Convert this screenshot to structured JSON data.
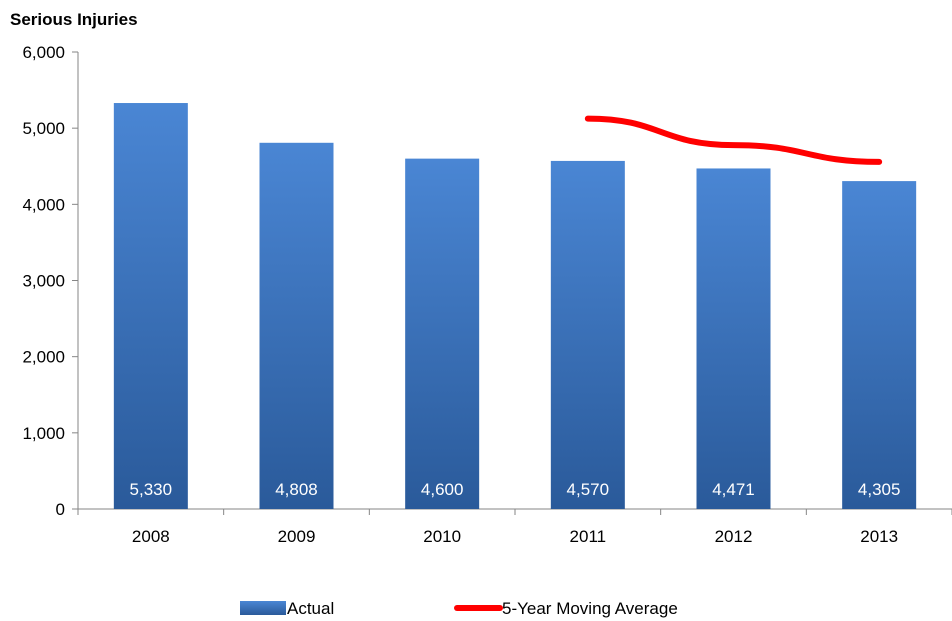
{
  "chart_data": {
    "type": "bar",
    "title": "Serious Injuries",
    "categories": [
      "2008",
      "2009",
      "2010",
      "2011",
      "2012",
      "2013"
    ],
    "series": [
      {
        "name": "Actual",
        "type": "bar",
        "values": [
          5330,
          4808,
          4600,
          4570,
          4471,
          4305
        ],
        "data_labels": [
          "5,330",
          "4,808",
          "4,600",
          "4,570",
          "4,471",
          "4,305"
        ]
      },
      {
        "name": "5-Year Moving Average",
        "type": "line",
        "values": [
          null,
          null,
          null,
          5126,
          4778,
          4557
        ]
      }
    ],
    "ylim": [
      0,
      6000
    ],
    "yticks": [
      0,
      1000,
      2000,
      3000,
      4000,
      5000,
      6000
    ],
    "ytick_labels": [
      "0",
      "1,000",
      "2,000",
      "3,000",
      "4,000",
      "5,000",
      "6,000"
    ],
    "grid": false,
    "legend_position": "bottom",
    "colors": {
      "bar_top": "#4a86d4",
      "bar_bottom": "#2a5a9a",
      "line": "#ff0000",
      "axis": "#868686"
    }
  }
}
